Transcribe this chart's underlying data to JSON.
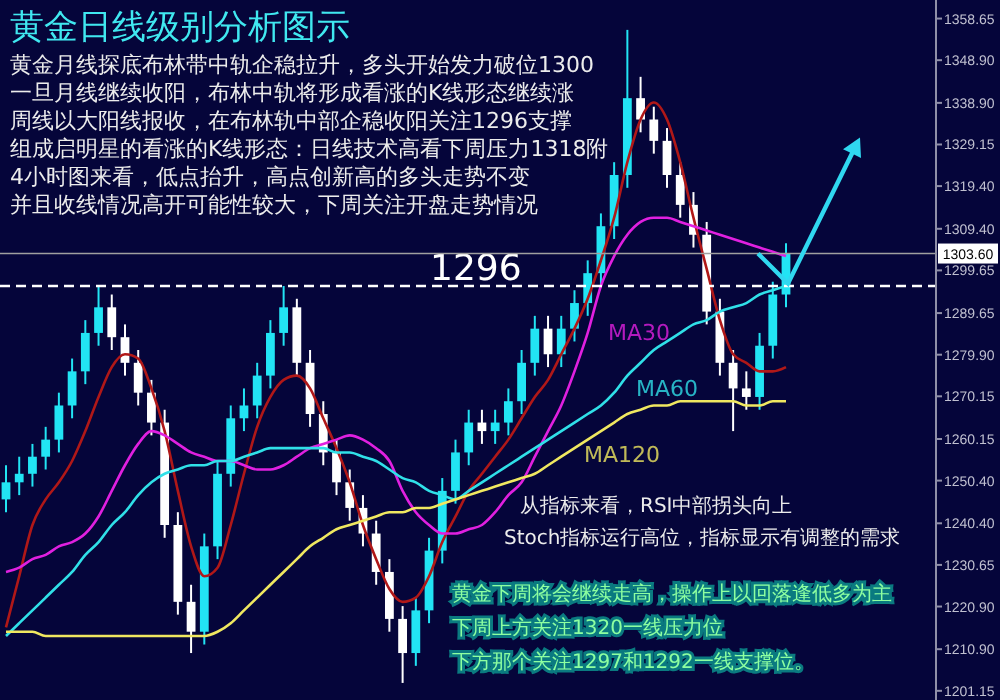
{
  "chart_data": {
    "type": "candlestick",
    "title": "黄金日线级别分析图示",
    "annotations": [
      "黄金月线探底布林带中轨企稳拉升，多头开始发力破位1300",
      "一旦月线继续收阳，布林中轨将形成看涨的K线形态继续涨",
      "周线以大阳线报收，在布林轨中部企稳收阳关注1296支撑",
      "组成启明星的看涨的K线形态：日线技术高看下周压力1318附",
      "4小时图来看，低点抬升，高点创新高的多头走势不变",
      "并且收线情况高开可能性较大，下周关注开盘走势情况",
      "从指标来看，RSI中部拐头向上",
      "Stoch指标运行高位，指标显示有调整的需求",
      "黄金下周将会继续走高，操作上以回落逢低多为主",
      "下周上方关注1320一线压力位",
      "下方那个关注1297和1292一线支撑位。"
    ],
    "categories": [
      null,
      null,
      null,
      null,
      null,
      null,
      null,
      null,
      null,
      null,
      null,
      null,
      null,
      null,
      null,
      null,
      null,
      null,
      null,
      null,
      null,
      null,
      null,
      null,
      null,
      null,
      null,
      null,
      null,
      null,
      null,
      null,
      null,
      null,
      null,
      null,
      null,
      null,
      null,
      null,
      null,
      null,
      null,
      null,
      null,
      null,
      null,
      null,
      null,
      null,
      null,
      null,
      null,
      null,
      null,
      null,
      null,
      null,
      null,
      null
    ],
    "ohlc": [
      [
        1246,
        1254,
        1243,
        1250
      ],
      [
        1250,
        1256,
        1247,
        1252
      ],
      [
        1252,
        1259,
        1249,
        1256
      ],
      [
        1256,
        1263,
        1253,
        1260
      ],
      [
        1260,
        1271,
        1257,
        1268
      ],
      [
        1268,
        1279,
        1265,
        1276
      ],
      [
        1276,
        1288,
        1273,
        1285
      ],
      [
        1285,
        1296,
        1282,
        1291
      ],
      [
        1291,
        1294,
        1281,
        1284
      ],
      [
        1284,
        1287,
        1275,
        1278
      ],
      [
        1278,
        1281,
        1268,
        1271
      ],
      [
        1271,
        1274,
        1261,
        1264
      ],
      [
        1264,
        1267,
        1237,
        1240
      ],
      [
        1240,
        1243,
        1219,
        1222
      ],
      [
        1222,
        1226,
        1210,
        1215
      ],
      [
        1215,
        1238,
        1212,
        1235
      ],
      [
        1235,
        1255,
        1232,
        1252
      ],
      [
        1252,
        1268,
        1249,
        1265
      ],
      [
        1265,
        1272,
        1262,
        1268
      ],
      [
        1268,
        1278,
        1265,
        1275
      ],
      [
        1275,
        1288,
        1272,
        1285
      ],
      [
        1285,
        1296,
        1282,
        1291
      ],
      [
        1291,
        1293,
        1275,
        1278
      ],
      [
        1278,
        1281,
        1263,
        1266
      ],
      [
        1266,
        1269,
        1254,
        1257
      ],
      [
        1257,
        1260,
        1247,
        1250
      ],
      [
        1250,
        1253,
        1241,
        1244
      ],
      [
        1244,
        1247,
        1235,
        1238
      ],
      [
        1238,
        1241,
        1226,
        1229
      ],
      [
        1229,
        1232,
        1215,
        1218
      ],
      [
        1218,
        1221,
        1203,
        1210
      ],
      [
        1210,
        1223,
        1207,
        1220
      ],
      [
        1220,
        1237,
        1217,
        1234
      ],
      [
        1234,
        1251,
        1231,
        1248
      ],
      [
        1248,
        1260,
        1245,
        1257
      ],
      [
        1257,
        1267,
        1254,
        1264
      ],
      [
        1264,
        1267,
        1259,
        1262
      ],
      [
        1262,
        1267,
        1259,
        1264
      ],
      [
        1264,
        1272,
        1261,
        1269
      ],
      [
        1269,
        1281,
        1266,
        1278
      ],
      [
        1278,
        1289,
        1275,
        1286
      ],
      [
        1286,
        1289,
        1277,
        1280
      ],
      [
        1280,
        1289,
        1277,
        1286
      ],
      [
        1286,
        1295,
        1283,
        1292
      ],
      [
        1292,
        1302,
        1289,
        1299
      ],
      [
        1299,
        1313,
        1296,
        1310
      ],
      [
        1310,
        1325,
        1307,
        1322
      ],
      [
        1322,
        1356,
        1319,
        1340
      ],
      [
        1340,
        1345,
        1332,
        1335
      ],
      [
        1335,
        1338,
        1327,
        1330
      ],
      [
        1330,
        1333,
        1319,
        1322
      ],
      [
        1322,
        1325,
        1312,
        1315
      ],
      [
        1315,
        1318,
        1305,
        1308
      ],
      [
        1308,
        1311,
        1287,
        1290
      ],
      [
        1290,
        1293,
        1275,
        1278
      ],
      [
        1278,
        1281,
        1262,
        1272
      ],
      [
        1272,
        1276,
        1267,
        1270
      ],
      [
        1270,
        1285,
        1267,
        1282
      ],
      [
        1282,
        1297,
        1279,
        1294
      ],
      [
        1294,
        1306,
        1291,
        1303.6
      ]
    ],
    "series": [
      {
        "type": "line",
        "color": "#b01818",
        "values": [
          1216,
          1228,
          1240,
          1246,
          1250,
          1255,
          1262,
          1270,
          1277,
          1280,
          1279,
          1272,
          1262,
          1248,
          1235,
          1228,
          1230,
          1240,
          1252,
          1263,
          1270,
          1274,
          1275,
          1272,
          1265,
          1258,
          1250,
          1240,
          1232,
          1225,
          1222,
          1223,
          1228,
          1236,
          1242,
          1248,
          1252,
          1256,
          1260,
          1265,
          1270,
          1274,
          1280,
          1286,
          1293,
          1302,
          1312,
          1325,
          1335,
          1339,
          1335,
          1325,
          1312,
          1300,
          1288,
          1280,
          1278,
          1276,
          1276,
          1277
        ]
      },
      {
        "type": "line",
        "name": "MA30",
        "color": "#e020e0",
        "values": [
          1229,
          1230,
          1232,
          1233,
          1235,
          1236,
          1238,
          1242,
          1248,
          1254,
          1259,
          1262,
          1261,
          1259,
          1257,
          1256,
          1255,
          1255,
          1254,
          1253,
          1253,
          1254,
          1256,
          1258,
          1259,
          1260,
          1261,
          1260,
          1258,
          1255,
          1248,
          1243,
          1240,
          1238,
          1238,
          1239,
          1240,
          1243,
          1247,
          1250,
          1256,
          1262,
          1268,
          1276,
          1285,
          1296,
          1303,
          1308,
          1311,
          1312,
          1312,
          1311,
          1310,
          1309,
          1308,
          1307,
          1306,
          1305,
          1304,
          1303
        ]
      },
      {
        "type": "line",
        "name": "MA60",
        "color": "#30e0e8",
        "values": [
          1214,
          1217,
          1220,
          1223,
          1226,
          1229,
          1233,
          1236,
          1240,
          1243,
          1247,
          1250,
          1252,
          1253,
          1254,
          1254,
          1255,
          1255,
          1256,
          1257,
          1258,
          1258,
          1258,
          1258,
          1258,
          1257,
          1257,
          1256,
          1255,
          1253,
          1251,
          1250,
          1248,
          1247,
          1246,
          1248,
          1250,
          1252,
          1254,
          1256,
          1258,
          1260,
          1262,
          1264,
          1266,
          1268,
          1271,
          1275,
          1278,
          1281,
          1283,
          1285,
          1287,
          1288,
          1290,
          1291,
          1292,
          1294,
          1295,
          1296
        ]
      },
      {
        "type": "line",
        "name": "MA120",
        "color": "#f0e860",
        "values": [
          1215,
          1215,
          1215,
          1214,
          1214,
          1214,
          1214,
          1214,
          1214,
          1214,
          1214,
          1214,
          1214,
          1214,
          1214,
          1214,
          1215,
          1217,
          1220,
          1223,
          1226,
          1229,
          1232,
          1235,
          1237,
          1239,
          1240,
          1241,
          1242,
          1243,
          1243,
          1244,
          1244,
          1245,
          1246,
          1247,
          1248,
          1249,
          1250,
          1251,
          1252,
          1254,
          1256,
          1258,
          1260,
          1262,
          1264,
          1266,
          1267,
          1268,
          1268,
          1269,
          1269,
          1269,
          1269,
          1269,
          1268,
          1268,
          1269,
          1269
        ]
      }
    ],
    "ylim": [
      1199,
      1363
    ],
    "yticks": [
      {
        "value": 1201.15,
        "label": "1201.15"
      },
      {
        "value": 1210.9,
        "label": "1210.90"
      },
      {
        "value": 1220.9,
        "label": "1220.90"
      },
      {
        "value": 1230.65,
        "label": "1230.65"
      },
      {
        "value": 1240.4,
        "label": "1240.40"
      },
      {
        "value": 1250.4,
        "label": "1250.40"
      },
      {
        "value": 1260.15,
        "label": "1260.15"
      },
      {
        "value": 1270.15,
        "label": "1270.15"
      },
      {
        "value": 1279.9,
        "label": "1279.90"
      },
      {
        "value": 1289.65,
        "label": "1289.65"
      },
      {
        "value": 1299.65,
        "label": "1299.65"
      },
      {
        "value": 1309.4,
        "label": "1309.40"
      },
      {
        "value": 1319.4,
        "label": "1319.40"
      },
      {
        "value": 1329.15,
        "label": "1329.15"
      },
      {
        "value": 1338.9,
        "label": "1338.90"
      },
      {
        "value": 1348.9,
        "label": "1348.90"
      },
      {
        "value": 1358.65,
        "label": "1358.65"
      }
    ],
    "ref_lines": [
      {
        "axis": "y",
        "value": 1296,
        "label": "1296",
        "color": "#ffffff",
        "line_style": "dashed"
      },
      {
        "axis": "y",
        "value": 1303.6,
        "label": "1303.60",
        "color": "#a0a0a0",
        "line_style": "solid"
      }
    ],
    "tick_labels": "y"
  }
}
